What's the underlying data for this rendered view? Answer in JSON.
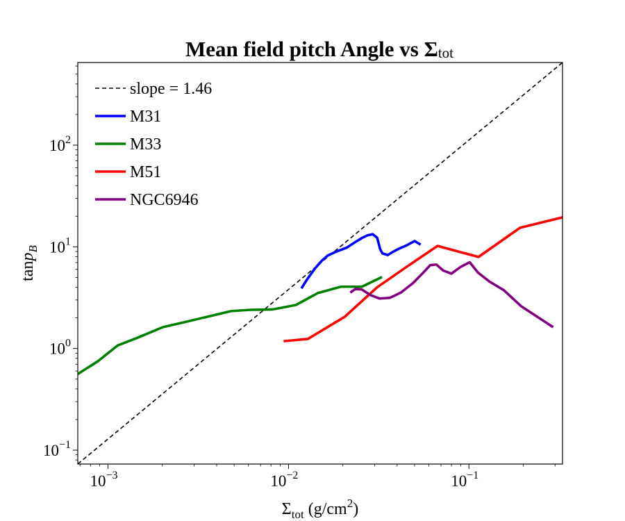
{
  "chart_data": {
    "type": "line",
    "title": "Mean field pitch Angle vs Σ",
    "title_subscript": "tot",
    "xlabel": {
      "main": "Σ",
      "sub": "tot",
      "unit_prefix": " (g/cm",
      "unit_sup": "2",
      "unit_suffix": ")"
    },
    "ylabel": {
      "prefix": "tan",
      "var": "p",
      "sub": "B"
    },
    "xscale": "log",
    "yscale": "log",
    "xlim": [
      0.00068,
      0.33
    ],
    "ylim": [
      0.073,
      650
    ],
    "xticks": [
      {
        "value": 0.001,
        "base": "10",
        "exp": "−3"
      },
      {
        "value": 0.01,
        "base": "10",
        "exp": "−2"
      },
      {
        "value": 0.1,
        "base": "10",
        "exp": "−1"
      }
    ],
    "yticks": [
      {
        "value": 0.1,
        "base": "10",
        "exp": "−1"
      },
      {
        "value": 1,
        "base": "10",
        "exp": "0"
      },
      {
        "value": 10,
        "base": "10",
        "exp": "1"
      },
      {
        "value": 100,
        "base": "10",
        "exp": "2"
      }
    ],
    "grid": false,
    "legend_position": "upper-left",
    "series": [
      {
        "name": "slope = 1.46",
        "color": "#000000",
        "style": "dashed",
        "x": [
          0.00068,
          0.33
        ],
        "y": [
          0.073,
          650
        ]
      },
      {
        "name": "M31",
        "color": "#0000ff",
        "style": "solid",
        "x": [
          0.0118,
          0.0128,
          0.0141,
          0.0153,
          0.0165,
          0.0182,
          0.021,
          0.0232,
          0.0255,
          0.0275,
          0.0293,
          0.031,
          0.0322,
          0.0332,
          0.0355,
          0.0378,
          0.041,
          0.045,
          0.05,
          0.054
        ],
        "y": [
          3.9,
          4.9,
          6.2,
          7.3,
          8.2,
          8.9,
          9.8,
          11.0,
          12.2,
          13.0,
          13.3,
          12.3,
          9.5,
          8.6,
          8.3,
          8.9,
          9.6,
          10.3,
          11.4,
          10.5
        ]
      },
      {
        "name": "M33",
        "color": "#008000",
        "style": "solid",
        "x": [
          0.00068,
          0.00088,
          0.00113,
          0.00145,
          0.00201,
          0.00267,
          0.00358,
          0.0048,
          0.00615,
          0.00815,
          0.011,
          0.0145,
          0.0195,
          0.0255,
          0.033
        ],
        "y": [
          0.56,
          0.75,
          1.07,
          1.27,
          1.62,
          1.82,
          2.06,
          2.33,
          2.4,
          2.42,
          2.68,
          3.5,
          4.05,
          4.05,
          5.05
        ]
      },
      {
        "name": "M51",
        "color": "#ff0000",
        "style": "solid",
        "x": [
          0.0094,
          0.0128,
          0.0205,
          0.031,
          0.046,
          0.067,
          0.113,
          0.192,
          0.33
        ],
        "y": [
          1.18,
          1.24,
          2.05,
          4.0,
          6.5,
          10.2,
          7.95,
          15.4,
          19.5
        ]
      },
      {
        "name": "NGC6946",
        "color": "#800080",
        "style": "solid",
        "x": [
          0.022,
          0.0235,
          0.0255,
          0.0285,
          0.032,
          0.0365,
          0.042,
          0.049,
          0.056,
          0.061,
          0.066,
          0.072,
          0.08,
          0.09,
          0.101,
          0.112,
          0.13,
          0.156,
          0.195,
          0.293
        ],
        "y": [
          3.55,
          3.85,
          3.8,
          3.35,
          3.1,
          3.15,
          3.55,
          4.4,
          5.6,
          6.6,
          6.7,
          5.85,
          5.45,
          6.35,
          7.05,
          5.6,
          4.55,
          3.75,
          2.6,
          1.62
        ]
      }
    ]
  }
}
